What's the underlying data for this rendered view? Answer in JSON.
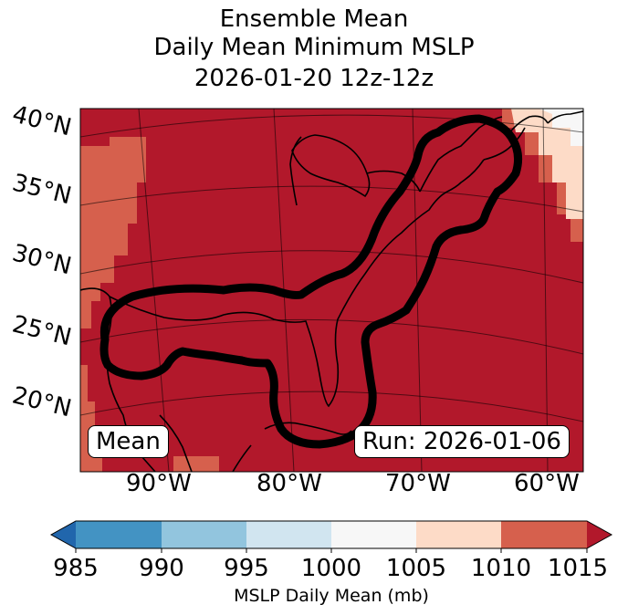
{
  "title": {
    "line1": "Ensemble Mean",
    "line2": "Daily Mean Minimum MSLP",
    "line3": "2026-01-20 12z-12z"
  },
  "lat_labels": [
    "40°N",
    "35°N",
    "30°N",
    "25°N",
    "20°N"
  ],
  "lon_labels": [
    "90°W",
    "80°W",
    "70°W",
    "60°W"
  ],
  "boxes": {
    "left": "Mean",
    "right": "Run: 2026-01-06"
  },
  "colorbar": {
    "ticks": [
      "985",
      "990",
      "995",
      "1000",
      "1005",
      "1010",
      "1015"
    ],
    "label": "MSLP Daily Mean (mb)",
    "colors": [
      "#2166ac",
      "#4393c3",
      "#92c5de",
      "#d1e5f0",
      "#f7f7f7",
      "#fddbc7",
      "#d6604d",
      "#b2182b"
    ]
  },
  "map_colors": {
    "ocean_main": "#b2182b",
    "mid": "#d6604d",
    "light": "#fddbc7",
    "pale": "#f7f7f7"
  }
}
